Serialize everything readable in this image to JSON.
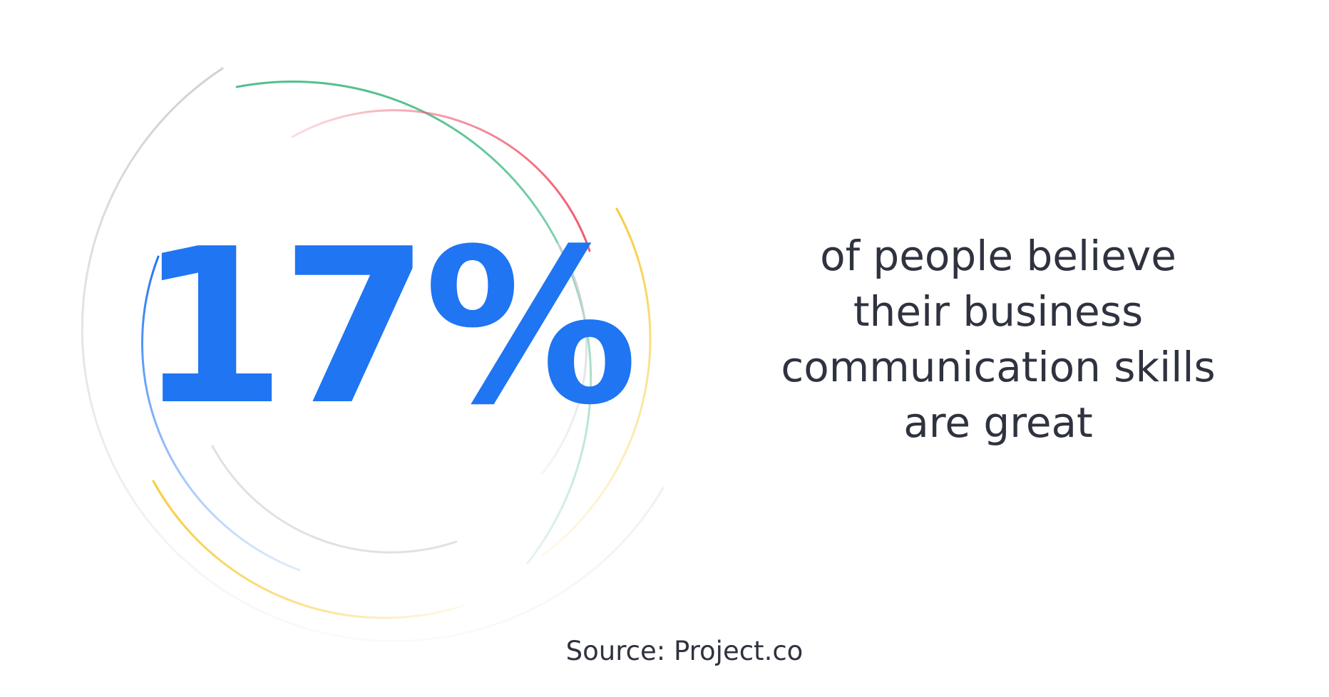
{
  "stat": {
    "value": "17%"
  },
  "caption": {
    "lines": [
      "of people believe",
      "their business",
      "communication skills",
      "are great"
    ]
  },
  "source": {
    "text": "Source: Project.co"
  },
  "colors": {
    "accent": "#1f75f2",
    "text": "#2f3340",
    "ring_green": "#4fc08d",
    "ring_red": "#ee5a6f",
    "ring_yellow": "#f7cd3f",
    "ring_blue": "#1f75f2",
    "ring_gray": "#cfd1d4"
  }
}
